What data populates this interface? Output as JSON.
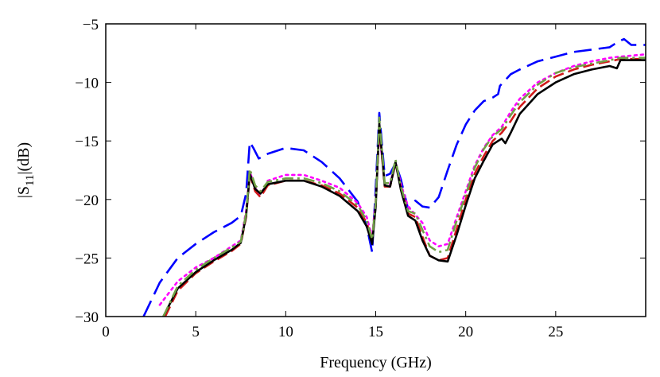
{
  "chart_data": {
    "type": "line",
    "title": "",
    "xlabel": "Frequency (GHz)",
    "ylabel": {
      "prefix": "|S",
      "sub": "11",
      "suffix": "|(dB)"
    },
    "xlim": [
      0,
      30
    ],
    "ylim": [
      -30,
      -5
    ],
    "xticks": [
      0,
      5,
      10,
      15,
      20,
      25
    ],
    "yticks": [
      -30,
      -25,
      -20,
      -15,
      -10,
      -5
    ],
    "grid": false,
    "legend": "none",
    "series": [
      {
        "name": "blue-dashed",
        "color": "#0000ff",
        "dash": "long-dash",
        "x": [
          2.1,
          3,
          4,
          5,
          6,
          7,
          7.5,
          7.8,
          8.0,
          8.2,
          8.5,
          9,
          10,
          11,
          12,
          13,
          14,
          14.5,
          14.8,
          15.0,
          15.2,
          15.5,
          15.8,
          16.1,
          16.4,
          16.8,
          17.2,
          17.6,
          18.0,
          18.5,
          19,
          19.5,
          20,
          20.5,
          21,
          21.5,
          21.8,
          21.9,
          22.5,
          23,
          24,
          25,
          26,
          27,
          28,
          28.5,
          28.8,
          29.2,
          30
        ],
        "y": [
          -30,
          -27.1,
          -25.0,
          -23.8,
          -22.8,
          -22.0,
          -21.4,
          -19.5,
          -15.1,
          -15.6,
          -16.5,
          -16.1,
          -15.6,
          -15.8,
          -16.8,
          -18.2,
          -20.2,
          -22.3,
          -24.5,
          -19.0,
          -12.6,
          -18.0,
          -17.8,
          -16.9,
          -18.3,
          -20.8,
          -20.1,
          -20.6,
          -20.7,
          -19.8,
          -17.5,
          -15.3,
          -13.6,
          -12.4,
          -11.6,
          -11.3,
          -11.0,
          -10.3,
          -9.3,
          -8.9,
          -8.2,
          -7.8,
          -7.4,
          -7.2,
          -7.0,
          -6.5,
          -6.3,
          -6.8,
          -6.8
        ]
      },
      {
        "name": "magenta-dotted",
        "color": "#ff00ff",
        "dash": "dotted",
        "x": [
          3.0,
          4,
          5,
          6,
          7,
          7.5,
          7.8,
          8.0,
          8.3,
          8.6,
          9,
          10,
          11,
          12,
          13,
          14,
          14.5,
          14.8,
          15.0,
          15.2,
          15.5,
          15.8,
          16.1,
          16.4,
          16.8,
          17.2,
          17.6,
          18.0,
          18.5,
          19,
          19.5,
          20,
          20.5,
          21,
          21.5,
          22,
          22.5,
          23,
          24,
          25,
          26,
          27,
          28,
          28.6,
          30
        ],
        "y": [
          -29.0,
          -27.0,
          -25.8,
          -25.0,
          -24.0,
          -23.5,
          -21.0,
          -17.6,
          -19.0,
          -19.6,
          -18.4,
          -17.9,
          -17.9,
          -18.4,
          -19.0,
          -20.3,
          -21.5,
          -23.2,
          -20.0,
          -14.2,
          -18.6,
          -18.7,
          -16.8,
          -18.7,
          -20.6,
          -21.3,
          -22.0,
          -23.5,
          -24.0,
          -23.8,
          -21.5,
          -19.3,
          -17.1,
          -15.6,
          -14.5,
          -13.8,
          -12.5,
          -11.4,
          -10.0,
          -9.2,
          -8.6,
          -8.2,
          -7.9,
          -7.8,
          -7.6
        ]
      },
      {
        "name": "red-dashed",
        "color": "#d11a1a",
        "dash": "medium-dash",
        "x": [
          3.3,
          4,
          5,
          6,
          7,
          7.5,
          7.8,
          8.0,
          8.3,
          8.6,
          9,
          10,
          11,
          12,
          13,
          14,
          14.5,
          14.8,
          15.0,
          15.2,
          15.5,
          15.8,
          16.1,
          16.4,
          16.8,
          17.2,
          17.6,
          18.0,
          18.5,
          19,
          19.5,
          20,
          20.5,
          21,
          21.5,
          22,
          22.5,
          23,
          24,
          25,
          26,
          27,
          28,
          28.6,
          30
        ],
        "y": [
          -30,
          -27.8,
          -26.3,
          -25.3,
          -24.4,
          -23.8,
          -21.5,
          -17.9,
          -19.3,
          -19.8,
          -18.8,
          -18.4,
          -18.4,
          -18.8,
          -19.5,
          -20.7,
          -22.0,
          -23.6,
          -20.5,
          -13.8,
          -18.9,
          -18.9,
          -16.9,
          -19.0,
          -21.2,
          -21.5,
          -23.2,
          -24.8,
          -25.2,
          -25.0,
          -22.5,
          -20.0,
          -17.8,
          -16.3,
          -15.0,
          -14.3,
          -13.3,
          -12.1,
          -10.5,
          -9.5,
          -8.9,
          -8.5,
          -8.2,
          -8.0,
          -8.0
        ]
      },
      {
        "name": "black-solid",
        "color": "#000000",
        "dash": "solid",
        "x": [
          3.2,
          4,
          5,
          6,
          7,
          7.5,
          7.8,
          8.0,
          8.3,
          8.6,
          9,
          10,
          11,
          12,
          13,
          14,
          14.5,
          14.8,
          15.0,
          15.2,
          15.5,
          15.8,
          16.1,
          16.4,
          16.8,
          17.2,
          17.6,
          18.0,
          18.5,
          19,
          19.5,
          20,
          20.5,
          21,
          21.5,
          22,
          22.2,
          22.5,
          23,
          24,
          25,
          26,
          27,
          28,
          28.4,
          28.6,
          30
        ],
        "y": [
          -30,
          -27.6,
          -26.2,
          -25.2,
          -24.3,
          -23.7,
          -21.4,
          -17.8,
          -19.1,
          -19.5,
          -18.7,
          -18.4,
          -18.4,
          -18.9,
          -19.7,
          -21.0,
          -22.3,
          -23.8,
          -20.6,
          -13.5,
          -18.8,
          -18.9,
          -16.8,
          -19.2,
          -21.4,
          -21.8,
          -23.5,
          -24.8,
          -25.2,
          -25.3,
          -23.0,
          -20.5,
          -18.2,
          -16.7,
          -15.3,
          -14.8,
          -15.2,
          -14.3,
          -12.7,
          -11.0,
          -10.0,
          -9.3,
          -8.9,
          -8.6,
          -8.8,
          -8.1,
          -8.1
        ]
      },
      {
        "name": "green-dashdot",
        "color": "#70a046",
        "dash": "dash-dot",
        "x": [
          3.2,
          4,
          5,
          6,
          7,
          7.5,
          7.8,
          8.0,
          8.3,
          8.6,
          9,
          10,
          11,
          12,
          13,
          14,
          14.5,
          14.8,
          15.0,
          15.2,
          15.5,
          15.8,
          16.1,
          16.4,
          16.8,
          17.2,
          17.6,
          18.0,
          18.5,
          19,
          19.5,
          20,
          20.5,
          21,
          21.5,
          22,
          22.5,
          23,
          24,
          25,
          26,
          27,
          28,
          28.6,
          30
        ],
        "y": [
          -30,
          -27.4,
          -26.0,
          -25.0,
          -24.1,
          -23.6,
          -21.2,
          -17.4,
          -18.8,
          -19.3,
          -18.5,
          -18.2,
          -18.2,
          -18.6,
          -19.3,
          -20.5,
          -21.8,
          -23.4,
          -20.2,
          -13.0,
          -18.6,
          -18.6,
          -16.6,
          -18.9,
          -21.0,
          -21.2,
          -22.6,
          -24.0,
          -24.5,
          -24.3,
          -21.8,
          -19.6,
          -17.3,
          -15.7,
          -14.6,
          -14.0,
          -12.8,
          -11.7,
          -10.2,
          -9.2,
          -8.7,
          -8.4,
          -8.1,
          -7.9,
          -7.9
        ]
      }
    ]
  }
}
